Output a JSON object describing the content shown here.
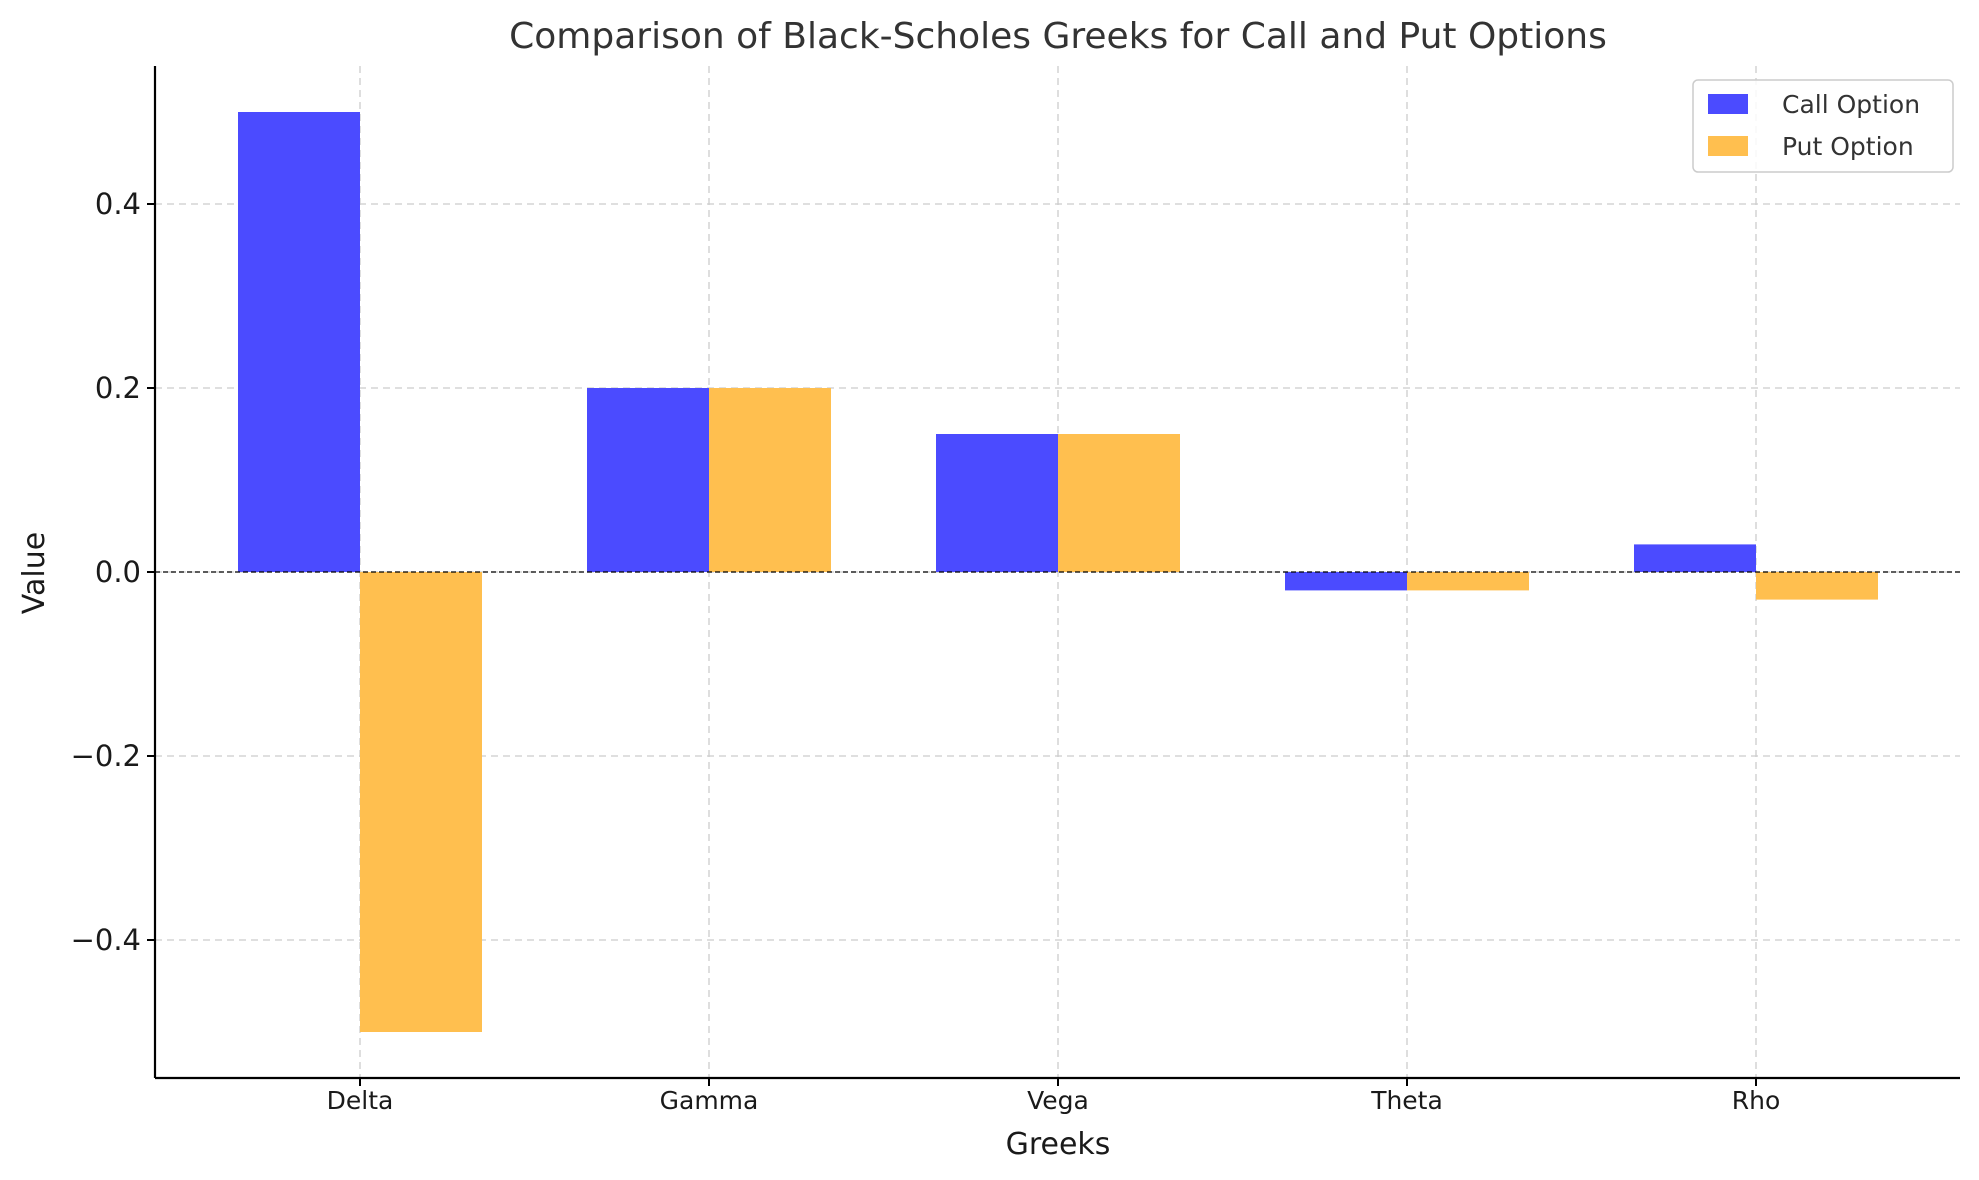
{
  "chart_data": {
    "type": "bar",
    "title": "Comparison of Black-Scholes Greeks for Call and Put Options",
    "xlabel": "Greeks",
    "ylabel": "Value",
    "categories": [
      "Delta",
      "Gamma",
      "Vega",
      "Theta",
      "Rho"
    ],
    "series": [
      {
        "name": "Call Option",
        "values": [
          0.5,
          0.2,
          0.15,
          -0.02,
          0.03
        ],
        "color": "#4b4bff"
      },
      {
        "name": "Put Option",
        "values": [
          -0.5,
          0.2,
          0.15,
          -0.02,
          -0.03
        ],
        "color": "#ffbf4f"
      }
    ],
    "ylim": [
      -0.55,
      0.55
    ],
    "yticks": [
      0.4,
      0.2,
      0.0,
      -0.2,
      -0.4
    ],
    "ytick_labels": [
      "0.4",
      "0.2",
      "0.0",
      "−0.2",
      "−0.4"
    ],
    "grid": true,
    "zero_line": true,
    "legend_position": "top-right"
  }
}
